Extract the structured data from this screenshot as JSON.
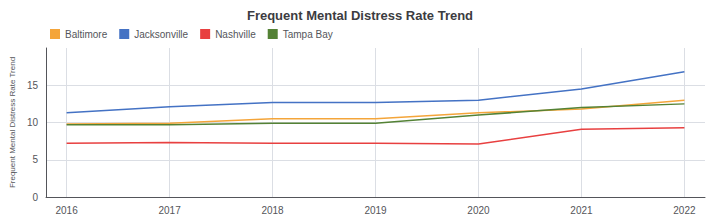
{
  "chart_data": {
    "type": "line",
    "title": "Frequent Mental Distress Rate Trend",
    "ylabel": "Frequent Mental Distress Rate Trend",
    "x": [
      2016,
      2017,
      2018,
      2019,
      2020,
      2021,
      2022
    ],
    "series": [
      {
        "name": "Baltimore",
        "color": "#F4A53A",
        "values": [
          9.8,
          9.9,
          10.5,
          10.5,
          11.3,
          11.8,
          13.0
        ]
      },
      {
        "name": "Jacksonville",
        "color": "#4472C4",
        "values": [
          11.3,
          12.1,
          12.7,
          12.7,
          13.0,
          14.5,
          16.8
        ]
      },
      {
        "name": "Nashville",
        "color": "#E84040",
        "values": [
          7.2,
          7.3,
          7.2,
          7.2,
          7.1,
          9.1,
          9.3
        ]
      },
      {
        "name": "Tampa Bay",
        "color": "#548235",
        "values": [
          9.7,
          9.7,
          9.9,
          9.9,
          11.0,
          12.0,
          12.5
        ]
      }
    ],
    "xlim": [
      2015.8,
      2022.2
    ],
    "xticks": [
      2016,
      2017,
      2018,
      2019,
      2020,
      2021,
      2022
    ],
    "ylim": [
      0,
      20
    ],
    "yticks": [
      0,
      5,
      10,
      15
    ],
    "grid": true,
    "legend": "upper left"
  }
}
